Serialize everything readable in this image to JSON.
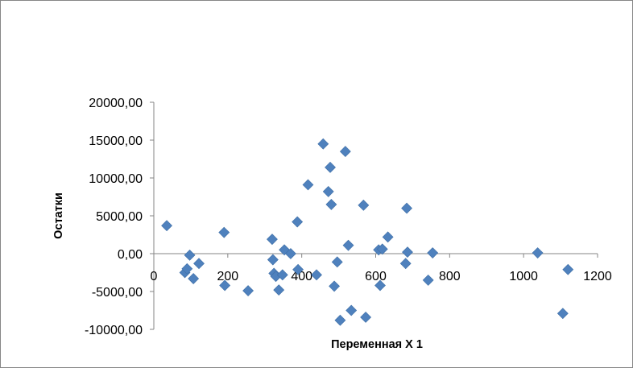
{
  "chart_data": {
    "type": "scatter",
    "title": "",
    "xlabel": "Переменная X 1",
    "ylabel": "Остатки",
    "xlim": [
      0,
      1200
    ],
    "ylim": [
      -10000,
      20000
    ],
    "x_ticks": [
      0,
      200,
      400,
      600,
      800,
      1000,
      1200
    ],
    "x_tick_labels": [
      "0",
      "200",
      "400",
      "600",
      "800",
      "1000",
      "1200"
    ],
    "y_ticks": [
      20000,
      15000,
      10000,
      5000,
      0,
      -5000,
      -10000
    ],
    "y_tick_labels": [
      "20000,00",
      "15000,00",
      "10000,00",
      "5000,00",
      "0,00",
      "-5000,00",
      "-10000,00"
    ],
    "grid": false,
    "legend": false,
    "marker": "diamond",
    "marker_color": "#4F81BD",
    "series": [
      {
        "points": [
          {
            "x": 35,
            "y": 3700
          },
          {
            "x": 84,
            "y": -2500
          },
          {
            "x": 90,
            "y": -2000
          },
          {
            "x": 97,
            "y": -200
          },
          {
            "x": 107,
            "y": -3300
          },
          {
            "x": 122,
            "y": -1300
          },
          {
            "x": 190,
            "y": 2800
          },
          {
            "x": 192,
            "y": -4200
          },
          {
            "x": 255,
            "y": -4900
          },
          {
            "x": 320,
            "y": 1900
          },
          {
            "x": 322,
            "y": -800
          },
          {
            "x": 325,
            "y": -2600
          },
          {
            "x": 330,
            "y": -3000
          },
          {
            "x": 338,
            "y": -4800
          },
          {
            "x": 348,
            "y": -2800
          },
          {
            "x": 353,
            "y": 500
          },
          {
            "x": 370,
            "y": 0
          },
          {
            "x": 388,
            "y": 4200
          },
          {
            "x": 390,
            "y": -2100
          },
          {
            "x": 417,
            "y": 9100
          },
          {
            "x": 440,
            "y": -2800
          },
          {
            "x": 458,
            "y": 14500
          },
          {
            "x": 472,
            "y": 8200
          },
          {
            "x": 477,
            "y": 11400
          },
          {
            "x": 480,
            "y": 6500
          },
          {
            "x": 488,
            "y": -4300
          },
          {
            "x": 496,
            "y": -1100
          },
          {
            "x": 504,
            "y": -8800
          },
          {
            "x": 518,
            "y": 13500
          },
          {
            "x": 526,
            "y": 1100
          },
          {
            "x": 534,
            "y": -7500
          },
          {
            "x": 567,
            "y": 6400
          },
          {
            "x": 573,
            "y": -8400
          },
          {
            "x": 608,
            "y": 500
          },
          {
            "x": 612,
            "y": -4200
          },
          {
            "x": 618,
            "y": 600
          },
          {
            "x": 633,
            "y": 2200
          },
          {
            "x": 681,
            "y": -1300
          },
          {
            "x": 684,
            "y": 6000
          },
          {
            "x": 686,
            "y": 200
          },
          {
            "x": 742,
            "y": -3500
          },
          {
            "x": 754,
            "y": 100
          },
          {
            "x": 1038,
            "y": 100
          },
          {
            "x": 1106,
            "y": -7900
          },
          {
            "x": 1120,
            "y": -2100
          }
        ]
      }
    ]
  }
}
